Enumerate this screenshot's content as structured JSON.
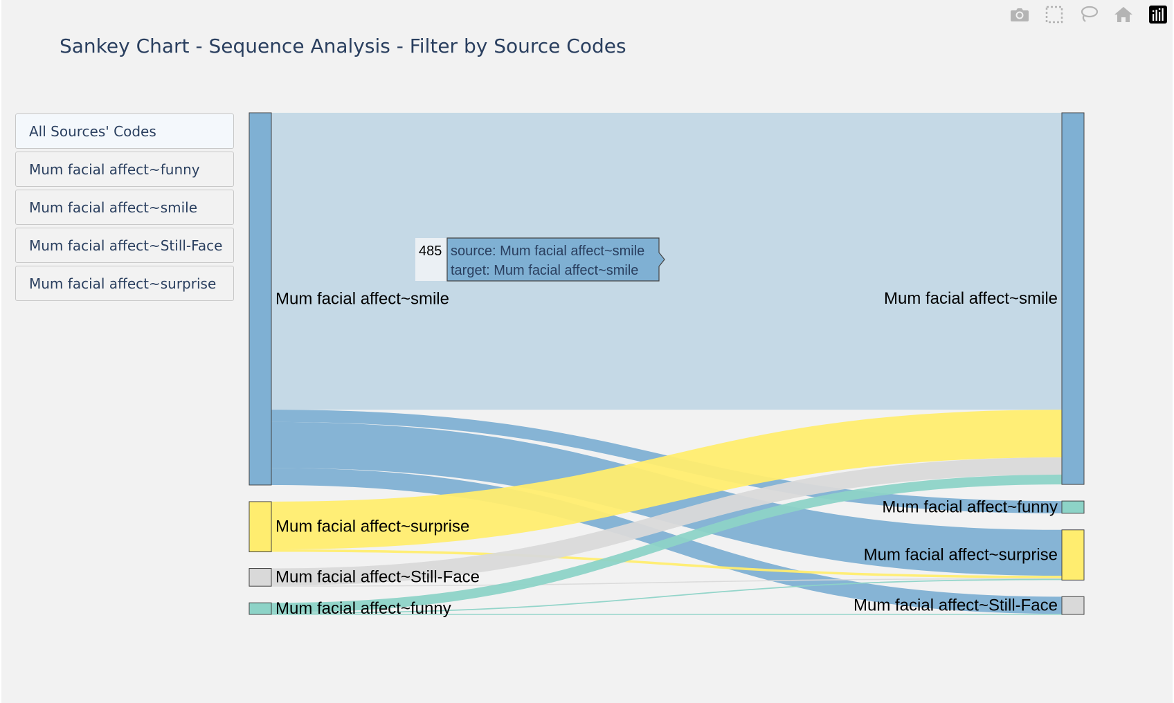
{
  "title": "Sankey Chart - Sequence Analysis - Filter by Source Codes",
  "filter_buttons": [
    {
      "label": "All Sources' Codes",
      "active": true
    },
    {
      "label": "Mum facial affect~funny",
      "active": false
    },
    {
      "label": "Mum facial affect~smile",
      "active": false
    },
    {
      "label": "Mum facial affect~Still-Face",
      "active": false
    },
    {
      "label": "Mum facial affect~surprise",
      "active": false
    }
  ],
  "modebar": {
    "icons": [
      "camera-icon",
      "box-select-icon",
      "lasso-select-icon",
      "home-icon",
      "plotly-logo-icon"
    ]
  },
  "tooltip": {
    "value": "485",
    "source_line": "source: Mum facial affect~smile",
    "target_line": "target: Mum facial affect~smile"
  },
  "chart_data": {
    "type": "sankey",
    "title": "Sankey Chart - Sequence Analysis - Filter by Source Codes",
    "nodes": [
      {
        "id": "src-smile",
        "label": "Mum facial affect~smile",
        "side": "source",
        "color": "#7fb0d3"
      },
      {
        "id": "src-surprise",
        "label": "Mum facial affect~surprise",
        "side": "source",
        "color": "#ffed6f"
      },
      {
        "id": "src-stillface",
        "label": "Mum facial affect~Still-Face",
        "side": "source",
        "color": "#d9d9d9"
      },
      {
        "id": "src-funny",
        "label": "Mum facial affect~funny",
        "side": "source",
        "color": "#8dd3c7"
      },
      {
        "id": "tgt-smile",
        "label": "Mum facial affect~smile",
        "side": "target",
        "color": "#7fb0d3"
      },
      {
        "id": "tgt-funny",
        "label": "Mum facial affect~funny",
        "side": "target",
        "color": "#8dd3c7"
      },
      {
        "id": "tgt-surprise",
        "label": "Mum facial affect~surprise",
        "side": "target",
        "color": "#ffed6f"
      },
      {
        "id": "tgt-stillface",
        "label": "Mum facial affect~Still-Face",
        "side": "target",
        "color": "#d9d9d9"
      }
    ],
    "links": [
      {
        "source": "src-smile",
        "target": "tgt-smile",
        "value": 485,
        "color": "#c5d9e6"
      },
      {
        "source": "src-smile",
        "target": "tgt-funny",
        "value": 20,
        "color": "#7fb0d3"
      },
      {
        "source": "src-smile",
        "target": "tgt-surprise",
        "value": 75,
        "color": "#7fb0d3"
      },
      {
        "source": "src-smile",
        "target": "tgt-stillface",
        "value": 28,
        "color": "#7fb0d3"
      },
      {
        "source": "src-surprise",
        "target": "tgt-smile",
        "value": 78,
        "color": "#ffed6f"
      },
      {
        "source": "src-surprise",
        "target": "tgt-surprise",
        "value": 4,
        "color": "#ffed6f"
      },
      {
        "source": "src-stillface",
        "target": "tgt-smile",
        "value": 28,
        "color": "#d9d9d9"
      },
      {
        "source": "src-stillface",
        "target": "tgt-surprise",
        "value": 1,
        "color": "#d9d9d9"
      },
      {
        "source": "src-funny",
        "target": "tgt-smile",
        "value": 16,
        "color": "#8dd3c7"
      },
      {
        "source": "src-funny",
        "target": "tgt-surprise",
        "value": 2,
        "color": "#8dd3c7"
      },
      {
        "source": "src-funny",
        "target": "tgt-stillface",
        "value": 1,
        "color": "#8dd3c7"
      }
    ]
  }
}
